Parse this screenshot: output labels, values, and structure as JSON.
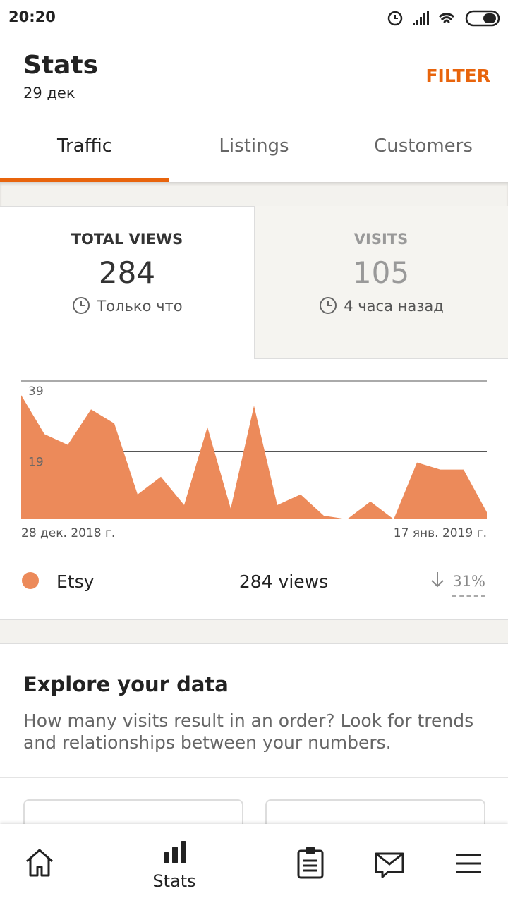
{
  "status_bar": {
    "time": "20:20"
  },
  "header": {
    "title": "Stats",
    "date": "29 дек",
    "filter": "FILTER"
  },
  "tabs": [
    "Traffic",
    "Listings",
    "Customers"
  ],
  "summary": {
    "total_views": {
      "label": "TOTAL VIEWS",
      "value": "284",
      "updated": "Только что"
    },
    "visits": {
      "label": "VISITS",
      "value": "105",
      "updated": "4 часа назад"
    }
  },
  "chart_data": {
    "type": "area",
    "categories": [
      "28 дек. 2018 г.",
      null,
      null,
      null,
      null,
      null,
      null,
      null,
      null,
      null,
      null,
      null,
      null,
      null,
      null,
      null,
      null,
      null,
      null,
      null,
      "17 янв. 2019 г."
    ],
    "series": [
      {
        "name": "Etsy",
        "color": "#ec8a5a",
        "values": [
          35,
          24,
          21,
          31,
          27,
          7,
          12,
          4,
          26,
          3,
          32,
          4,
          7,
          1,
          0,
          5,
          0,
          16,
          14,
          14,
          2
        ]
      }
    ],
    "ylim": [
      0,
      39
    ],
    "yticks": [
      19,
      39
    ],
    "grid": true
  },
  "legend": {
    "total": "284 views",
    "change": "31%"
  },
  "explore": {
    "title": "Explore your data",
    "text": "How many visits result in an order? Look for trends and relationships between your numbers."
  },
  "bottom_nav": {
    "active_label": "Stats"
  }
}
